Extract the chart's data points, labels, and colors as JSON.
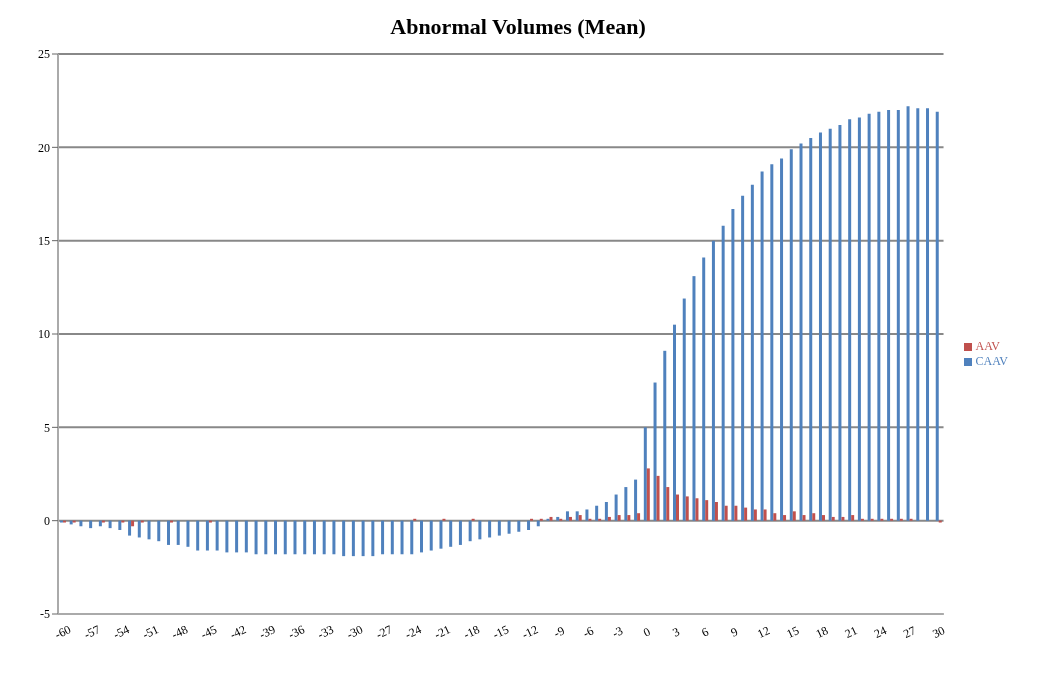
{
  "chart_data": {
    "type": "bar",
    "title": "Abnormal Volumes (Mean)",
    "categories": [
      "-60",
      null,
      null,
      "-57",
      null,
      null,
      "-54",
      null,
      null,
      "-51",
      null,
      null,
      "-48",
      null,
      null,
      "-45",
      null,
      null,
      "-42",
      null,
      null,
      "-39",
      null,
      null,
      "-36",
      null,
      null,
      "-33",
      null,
      null,
      "-30",
      null,
      null,
      "-27",
      null,
      null,
      "-24",
      null,
      null,
      "-21",
      null,
      null,
      "-18",
      null,
      null,
      "-15",
      null,
      null,
      "-12",
      null,
      null,
      "-9",
      null,
      null,
      "-6",
      null,
      null,
      "-3",
      null,
      null,
      "0",
      null,
      null,
      "3",
      null,
      null,
      "6",
      null,
      null,
      "9",
      null,
      null,
      "12",
      null,
      null,
      "15",
      null,
      null,
      "18",
      null,
      null,
      "21",
      null,
      null,
      "24",
      null,
      null,
      "27",
      null,
      null,
      "30"
    ],
    "series": [
      {
        "name": "CAAV",
        "color": "#4f81bd",
        "values": [
          -0.1,
          -0.2,
          -0.3,
          -0.4,
          -0.3,
          -0.4,
          -0.5,
          -0.8,
          -0.9,
          -1.0,
          -1.1,
          -1.3,
          -1.3,
          -1.4,
          -1.6,
          -1.6,
          -1.6,
          -1.7,
          -1.7,
          -1.7,
          -1.8,
          -1.8,
          -1.8,
          -1.8,
          -1.8,
          -1.8,
          -1.8,
          -1.8,
          -1.8,
          -1.9,
          -1.9,
          -1.9,
          -1.9,
          -1.8,
          -1.8,
          -1.8,
          -1.8,
          -1.7,
          -1.6,
          -1.5,
          -1.4,
          -1.3,
          -1.1,
          -1.0,
          -0.9,
          -0.8,
          -0.7,
          -0.6,
          -0.5,
          -0.3,
          0.1,
          0.2,
          0.5,
          0.5,
          0.6,
          0.8,
          1.0,
          1.4,
          1.8,
          2.2,
          5.0,
          7.4,
          9.1,
          10.5,
          11.9,
          13.1,
          14.1,
          15.0,
          15.8,
          16.7,
          17.4,
          18.0,
          18.7,
          19.1,
          19.4,
          19.9,
          20.2,
          20.5,
          20.8,
          21.0,
          21.2,
          21.5,
          21.6,
          21.8,
          21.9,
          22.0,
          22.0,
          22.2,
          22.1,
          22.1,
          21.9
        ]
      },
      {
        "name": "AAV",
        "color": "#c0504d",
        "values": [
          -0.1,
          -0.1,
          0,
          0,
          -0.1,
          0,
          -0.1,
          -0.3,
          -0.1,
          0,
          0,
          -0.1,
          0,
          0,
          0,
          -0.1,
          0,
          0,
          0,
          0,
          0,
          0,
          0,
          0,
          0,
          0,
          0,
          0,
          0,
          0,
          0,
          0,
          0,
          0,
          0,
          0,
          0.1,
          0,
          0,
          0.1,
          0,
          0,
          0.1,
          0,
          0,
          0,
          0,
          0,
          0.1,
          0.1,
          0.2,
          0.1,
          0.2,
          0.3,
          0.1,
          0.1,
          0.2,
          0.3,
          0.3,
          0.4,
          2.8,
          2.4,
          1.8,
          1.4,
          1.3,
          1.2,
          1.1,
          1.0,
          0.8,
          0.8,
          0.7,
          0.6,
          0.6,
          0.4,
          0.3,
          0.5,
          0.3,
          0.4,
          0.3,
          0.2,
          0.2,
          0.3,
          0.1,
          0.1,
          0.1,
          0.1,
          0.1,
          0.1,
          0,
          0,
          -0.1
        ]
      }
    ],
    "ylim": [
      -5,
      25
    ],
    "yticks": [
      -5,
      0,
      5,
      10,
      15,
      20,
      25
    ],
    "grid": "y",
    "legend": "right"
  }
}
